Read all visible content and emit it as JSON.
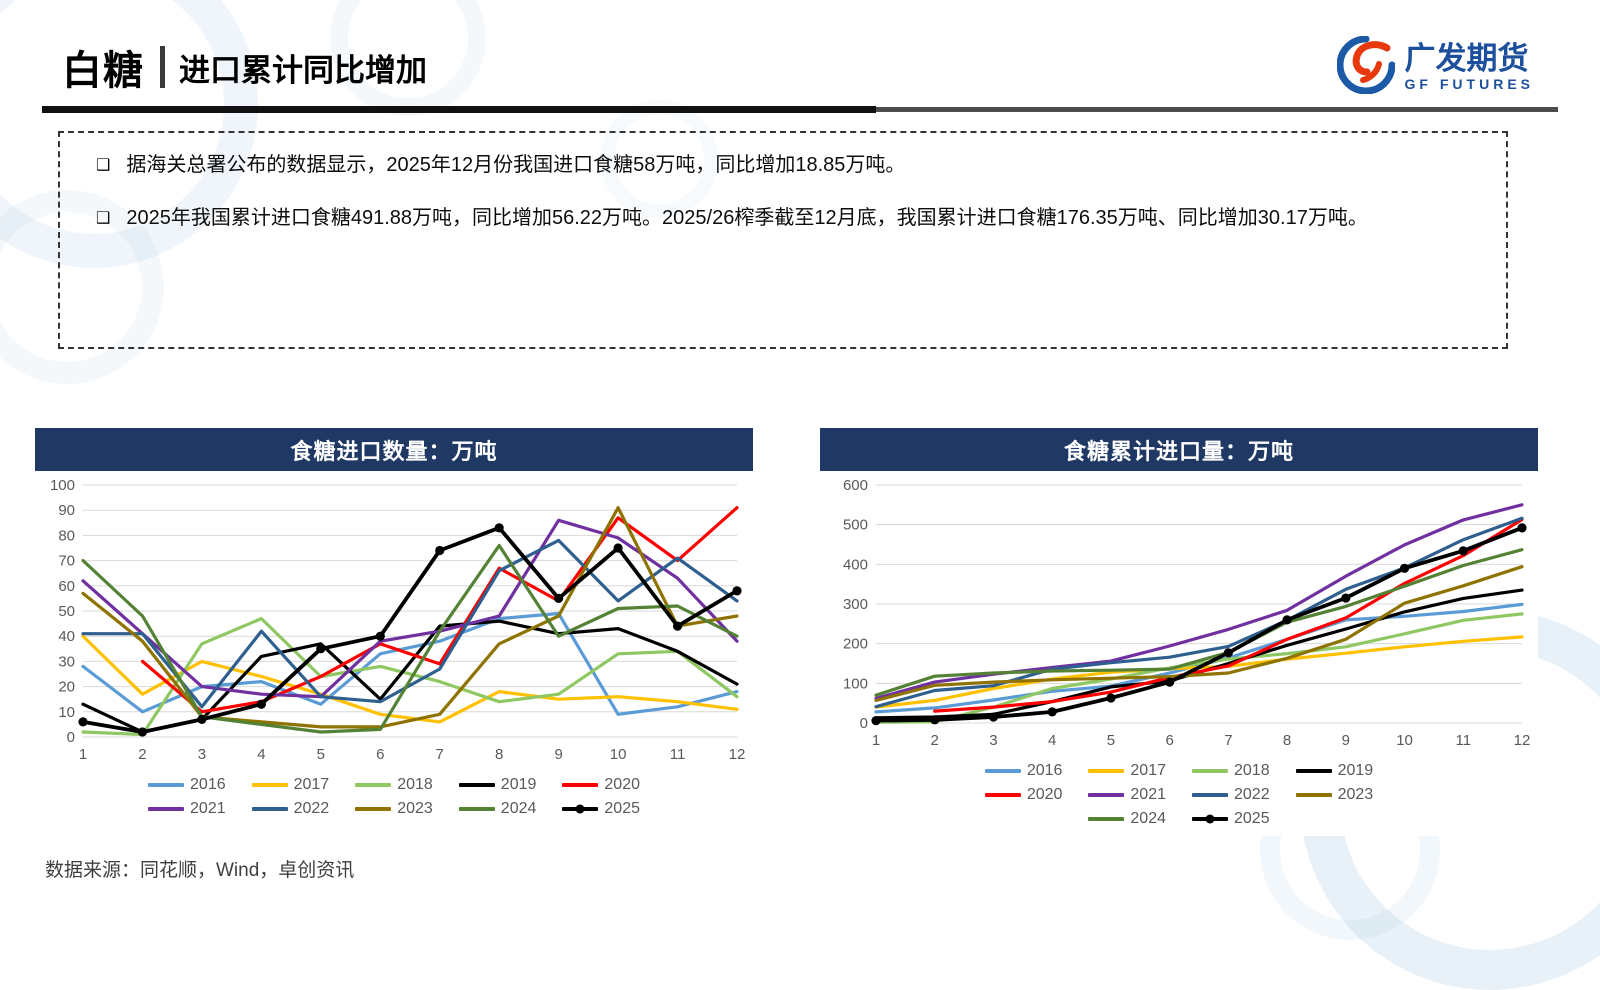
{
  "header": {
    "product": "白糖",
    "title": "进口累计同比增加",
    "logo": {
      "cn": "广发期货",
      "en": "GF FUTURES",
      "blue": "#1c4f9c",
      "red": "#e8380d"
    }
  },
  "bullets": [
    "据海关总署公布的数据显示，2025年12月份我国进口食糖58万吨，同比增加18.85万吨。",
    "2025年我国累计进口食糖491.88万吨，同比增加56.22万吨。2025/26榨季截至12月底，我国累计进口食糖176.35万吨、同比增加30.17万吨。"
  ],
  "source": "数据来源：同花顺，Wind，卓创资讯",
  "panel_header_color": "#1F3864",
  "chart_data": [
    {
      "type": "line",
      "title": "食糖进口数量：万吨",
      "xlabel": "",
      "ylabel": "",
      "x": [
        1,
        2,
        3,
        4,
        5,
        6,
        7,
        8,
        9,
        10,
        11,
        12
      ],
      "ylim": [
        0,
        100
      ],
      "ytick_step": 10,
      "grid": true,
      "legend_position": "bottom",
      "legend_rows": [
        [
          "2016",
          "2017",
          "2018",
          "2019",
          "2020"
        ],
        [
          "2021",
          "2022",
          "2023",
          "2024",
          "2025"
        ]
      ],
      "series": [
        {
          "name": "2016",
          "color": "#5B9BD5",
          "marker": false,
          "values": [
            28,
            10,
            20,
            22,
            13,
            33,
            38,
            47,
            49,
            9,
            12,
            18
          ]
        },
        {
          "name": "2017",
          "color": "#FFC000",
          "marker": false,
          "values": [
            40,
            17,
            30,
            24,
            17,
            9,
            6,
            18,
            15,
            16,
            14,
            11
          ]
        },
        {
          "name": "2018",
          "color": "#8FC862",
          "marker": false,
          "values": [
            2,
            1,
            37,
            47,
            24,
            28,
            22,
            14,
            17,
            33,
            34,
            16
          ]
        },
        {
          "name": "2019",
          "color": "#000000",
          "marker": false,
          "values": [
            13,
            2,
            7,
            32,
            37,
            15,
            44,
            46,
            41,
            43,
            34,
            21
          ]
        },
        {
          "name": "2020",
          "color": "#FF0000",
          "marker": false,
          "values": [
            null,
            30,
            10,
            14,
            24,
            37,
            29,
            67,
            54,
            87,
            70,
            91
          ]
        },
        {
          "name": "2021",
          "color": "#7030A0",
          "marker": false,
          "values": [
            62,
            41,
            20,
            17,
            16,
            38,
            42,
            48,
            86,
            79,
            63,
            38
          ]
        },
        {
          "name": "2022",
          "color": "#2E5F8F",
          "marker": false,
          "values": [
            41,
            41,
            12,
            42,
            16,
            14,
            27,
            66,
            78,
            54,
            71,
            54
          ]
        },
        {
          "name": "2023",
          "color": "#8F7300",
          "marker": false,
          "values": [
            57,
            38,
            8,
            6,
            4,
            4,
            9,
            37,
            48,
            91,
            44,
            48
          ]
        },
        {
          "name": "2024",
          "color": "#548235",
          "marker": false,
          "values": [
            70,
            48,
            8,
            5,
            2,
            3,
            42,
            76,
            40,
            51,
            52,
            40
          ]
        },
        {
          "name": "2025",
          "color": "#000000",
          "marker": true,
          "values": [
            6,
            2,
            7,
            13,
            35,
            40,
            74,
            83,
            55,
            75,
            44,
            58
          ]
        }
      ]
    },
    {
      "type": "line",
      "title": "食糖累计进口量：万吨",
      "xlabel": "",
      "ylabel": "",
      "x": [
        1,
        2,
        3,
        4,
        5,
        6,
        7,
        8,
        9,
        10,
        11,
        12
      ],
      "ylim": [
        0,
        600
      ],
      "ytick_step": 100,
      "grid": true,
      "legend_position": "bottom",
      "legend_rows": [
        [
          "2016",
          "2017",
          "2018",
          "2019"
        ],
        [
          "2020",
          "2021",
          "2022",
          "2023"
        ],
        [
          "2024",
          "2025"
        ]
      ],
      "series": [
        {
          "name": "2016",
          "color": "#5B9BD5",
          "marker": false,
          "values": [
            28,
            38,
            58,
            80,
            93,
            126,
            164,
            211,
            260,
            269,
            281,
            299
          ]
        },
        {
          "name": "2017",
          "color": "#FFC000",
          "marker": false,
          "values": [
            40,
            57,
            87,
            111,
            128,
            137,
            143,
            161,
            176,
            192,
            206,
            217
          ]
        },
        {
          "name": "2018",
          "color": "#8FC862",
          "marker": false,
          "values": [
            2,
            3,
            40,
            87,
            111,
            139,
            161,
            175,
            192,
            225,
            259,
            275
          ]
        },
        {
          "name": "2019",
          "color": "#000000",
          "marker": false,
          "values": [
            13,
            15,
            22,
            54,
            91,
            106,
            150,
            196,
            237,
            280,
            314,
            335
          ]
        },
        {
          "name": "2020",
          "color": "#FF0000",
          "marker": false,
          "values": [
            null,
            30,
            40,
            54,
            78,
            115,
            144,
            211,
            265,
            352,
            422,
            513
          ]
        },
        {
          "name": "2021",
          "color": "#7030A0",
          "marker": false,
          "values": [
            62,
            103,
            123,
            140,
            156,
            194,
            236,
            284,
            370,
            449,
            512,
            550
          ]
        },
        {
          "name": "2022",
          "color": "#2E5F8F",
          "marker": false,
          "values": [
            41,
            82,
            94,
            136,
            152,
            166,
            193,
            259,
            337,
            391,
            462,
            516
          ]
        },
        {
          "name": "2023",
          "color": "#8F7300",
          "marker": false,
          "values": [
            57,
            95,
            103,
            109,
            113,
            117,
            126,
            163,
            211,
            302,
            346,
            394
          ]
        },
        {
          "name": "2024",
          "color": "#548235",
          "marker": false,
          "values": [
            70,
            118,
            126,
            131,
            133,
            136,
            178,
            254,
            294,
            345,
            397,
            437
          ]
        },
        {
          "name": "2025",
          "color": "#000000",
          "marker": true,
          "values": [
            6,
            8,
            15,
            28,
            63,
            103,
            177,
            260,
            315,
            390,
            434,
            492
          ]
        }
      ]
    }
  ]
}
